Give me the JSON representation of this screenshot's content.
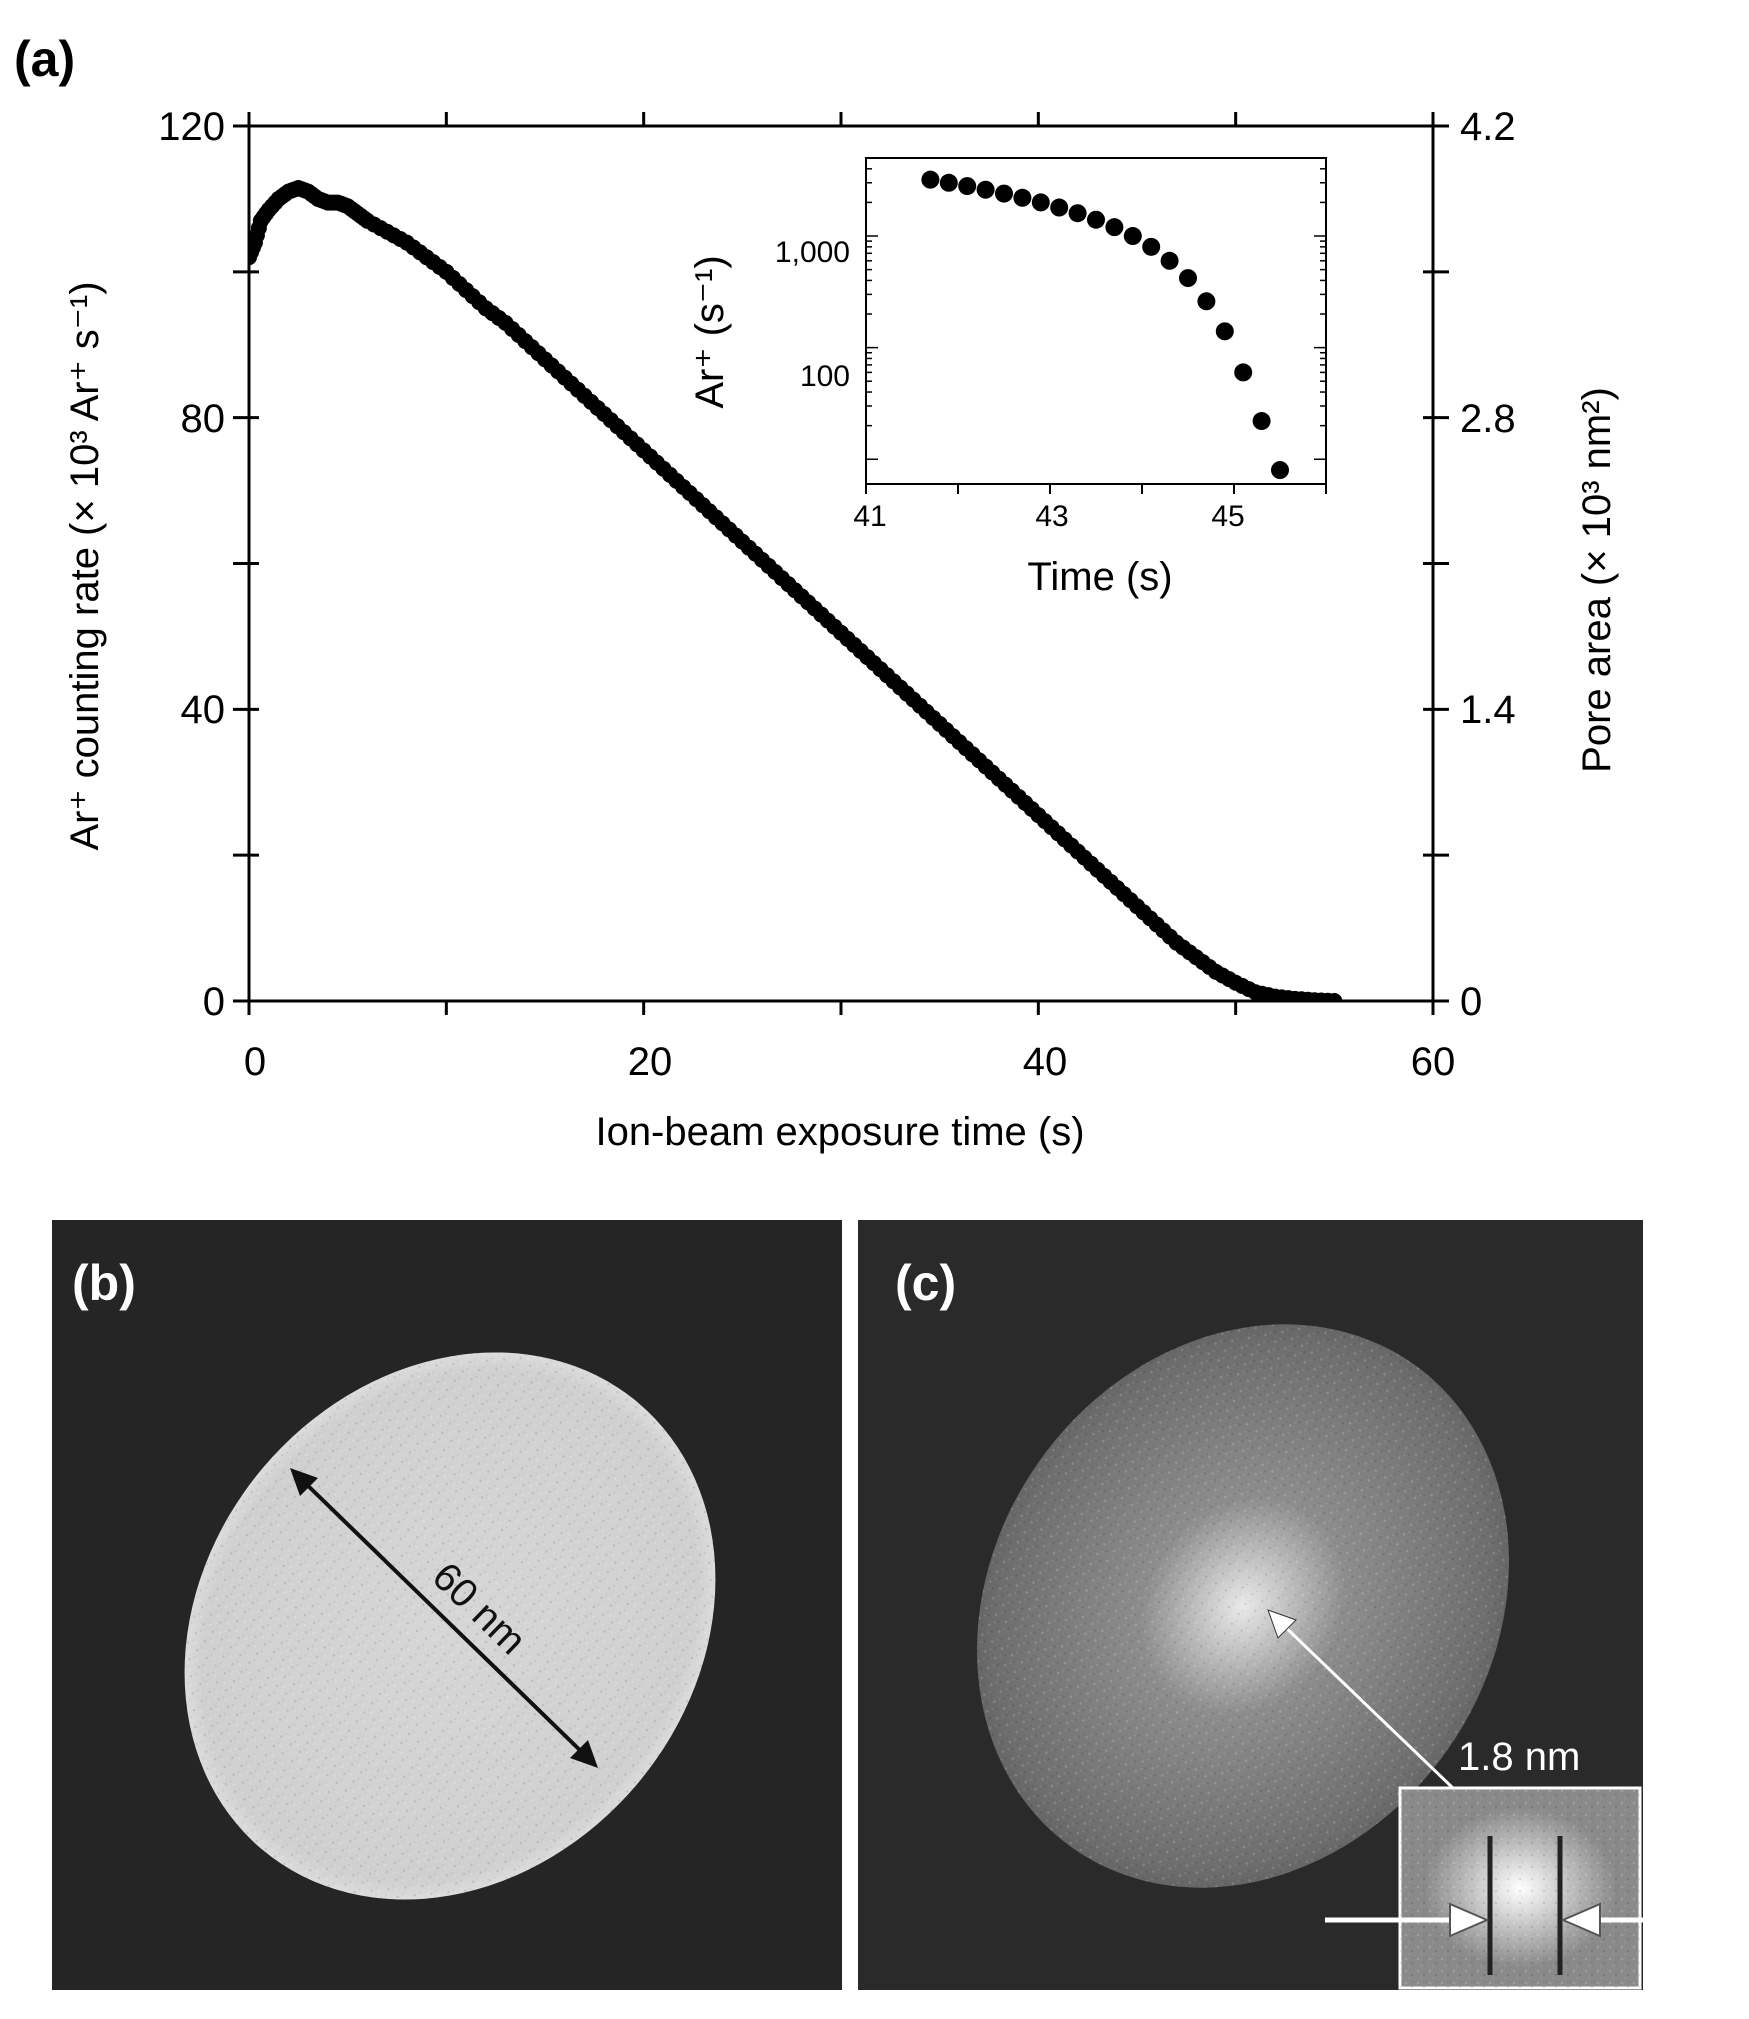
{
  "chart_data": [
    {
      "panel": "(a)",
      "type": "scatter",
      "xlabel": "Ion-beam exposure time (s)",
      "ylabel": "Ar⁺ counting rate (× 10³ Ar⁺ s⁻¹)",
      "ylabel_right": "Pore area (× 10³ nm²)",
      "xlim": [
        0,
        60
      ],
      "ylim": [
        0,
        120
      ],
      "ylim_right": [
        0,
        4.2
      ],
      "x_ticks": [
        "0",
        "20",
        "40",
        "60"
      ],
      "y_ticks": [
        "0",
        "40",
        "80",
        "120"
      ],
      "y_right_ticks": [
        "0",
        "1.4",
        "2.8",
        "4.2"
      ],
      "grid": false,
      "series": [
        {
          "marker": "filled-circle",
          "points": [
            [
              0.0,
              102
            ],
            [
              0.3,
              104
            ],
            [
              0.6,
              107
            ],
            [
              1.0,
              108.5
            ],
            [
              1.5,
              110
            ],
            [
              2.0,
              111
            ],
            [
              2.5,
              111.5
            ],
            [
              3.0,
              111
            ],
            [
              3.5,
              110
            ],
            [
              4.0,
              109.5
            ],
            [
              4.5,
              109.5
            ],
            [
              5.0,
              109
            ],
            [
              5.5,
              108
            ],
            [
              6.0,
              107
            ],
            [
              7.0,
              105.5
            ],
            [
              8.0,
              104
            ],
            [
              9.0,
              102
            ],
            [
              10.0,
              100
            ],
            [
              11.0,
              97.5
            ],
            [
              12.0,
              95
            ],
            [
              13.0,
              93
            ],
            [
              14.0,
              90.5
            ],
            [
              15.0,
              88
            ],
            [
              16.0,
              85.5
            ],
            [
              17.0,
              83
            ],
            [
              18.0,
              80.5
            ],
            [
              19.0,
              78
            ],
            [
              20.0,
              75.5
            ],
            [
              21.0,
              73
            ],
            [
              22.0,
              70.5
            ],
            [
              23.0,
              68
            ],
            [
              24.0,
              65.5
            ],
            [
              25.0,
              63
            ],
            [
              26.0,
              60.5
            ],
            [
              27.0,
              58
            ],
            [
              28.0,
              55.5
            ],
            [
              29.0,
              53
            ],
            [
              30.0,
              50.5
            ],
            [
              31.0,
              48
            ],
            [
              32.0,
              45.5
            ],
            [
              33.0,
              43
            ],
            [
              34.0,
              40.5
            ],
            [
              35.0,
              38
            ],
            [
              36.0,
              35.5
            ],
            [
              37.0,
              33
            ],
            [
              38.0,
              30.5
            ],
            [
              39.0,
              28
            ],
            [
              40.0,
              25.5
            ],
            [
              41.0,
              23
            ],
            [
              42.0,
              20.5
            ],
            [
              43.0,
              18
            ],
            [
              44.0,
              15.5
            ],
            [
              45.0,
              13
            ],
            [
              46.0,
              10.5
            ],
            [
              47.0,
              8
            ],
            [
              48.0,
              6
            ],
            [
              49.0,
              4
            ],
            [
              50.0,
              2.5
            ],
            [
              51.0,
              1.2
            ],
            [
              52.0,
              0.6
            ],
            [
              53.0,
              0.3
            ],
            [
              54.0,
              0.1
            ],
            [
              55.0,
              0.0
            ]
          ]
        }
      ]
    },
    {
      "panel": "(a) inset",
      "type": "scatter",
      "xlabel": "Time (s)",
      "ylabel": "Ar⁺ (s⁻¹)",
      "xlim": [
        41,
        46
      ],
      "ylog": true,
      "ylim": [
        6,
        5000
      ],
      "x_ticks": [
        "41",
        "43",
        "45"
      ],
      "y_ticks": [
        "100",
        "1,000"
      ],
      "series": [
        {
          "marker": "filled-circle",
          "points": [
            [
              41.7,
              3200
            ],
            [
              41.9,
              3000
            ],
            [
              42.1,
              2800
            ],
            [
              42.3,
              2600
            ],
            [
              42.5,
              2400
            ],
            [
              42.7,
              2200
            ],
            [
              42.9,
              2000
            ],
            [
              43.1,
              1800
            ],
            [
              43.3,
              1600
            ],
            [
              43.5,
              1400
            ],
            [
              43.7,
              1200
            ],
            [
              43.9,
              1000
            ],
            [
              44.1,
              800
            ],
            [
              44.3,
              600
            ],
            [
              44.5,
              420
            ],
            [
              44.7,
              260
            ],
            [
              44.9,
              140
            ],
            [
              45.1,
              60
            ],
            [
              45.3,
              22
            ],
            [
              45.5,
              8
            ]
          ]
        }
      ]
    }
  ],
  "panels": {
    "a": {
      "label": "(a)"
    },
    "b": {
      "label": "(b)",
      "dimension_label": "60 nm"
    },
    "c": {
      "label": "(c)",
      "dimension_label": "1.8 nm"
    }
  }
}
